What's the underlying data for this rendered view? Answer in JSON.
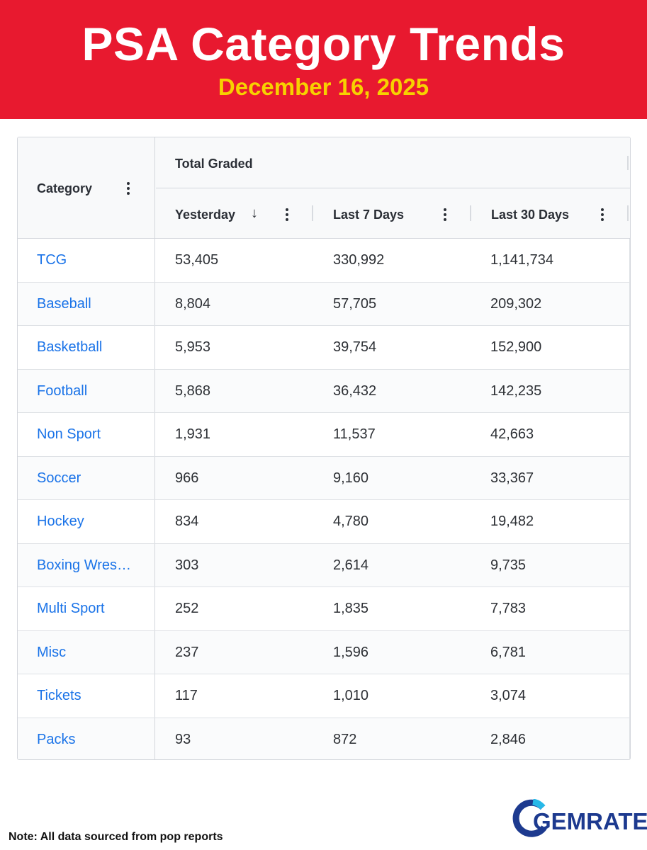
{
  "header": {
    "title": "PSA Category Trends",
    "date": "December 16, 2025"
  },
  "table": {
    "category_header": "Category",
    "group_header": "Total Graded",
    "columns": [
      "Yesterday",
      "Last 7 Days",
      "Last 30 Days"
    ],
    "sort": {
      "column": "Yesterday",
      "direction": "descending",
      "icon": "arrow-down-icon"
    },
    "rows": [
      {
        "category": "TCG",
        "yesterday": "53,405",
        "last7": "330,992",
        "last30": "1,141,734"
      },
      {
        "category": "Baseball",
        "yesterday": "8,804",
        "last7": "57,705",
        "last30": "209,302"
      },
      {
        "category": "Basketball",
        "yesterday": "5,953",
        "last7": "39,754",
        "last30": "152,900"
      },
      {
        "category": "Football",
        "yesterday": "5,868",
        "last7": "36,432",
        "last30": "142,235"
      },
      {
        "category": "Non Sport",
        "yesterday": "1,931",
        "last7": "11,537",
        "last30": "42,663"
      },
      {
        "category": "Soccer",
        "yesterday": "966",
        "last7": "9,160",
        "last30": "33,367"
      },
      {
        "category": "Hockey",
        "yesterday": "834",
        "last7": "4,780",
        "last30": "19,482"
      },
      {
        "category": "Boxing Wres…",
        "yesterday": "303",
        "last7": "2,614",
        "last30": "9,735"
      },
      {
        "category": "Multi Sport",
        "yesterday": "252",
        "last7": "1,835",
        "last30": "7,783"
      },
      {
        "category": "Misc",
        "yesterday": "237",
        "last7": "1,596",
        "last30": "6,781"
      },
      {
        "category": "Tickets",
        "yesterday": "117",
        "last7": "1,010",
        "last30": "3,074"
      },
      {
        "category": "Packs",
        "yesterday": "93",
        "last7": "872",
        "last30": "2,846"
      }
    ]
  },
  "footer": {
    "note": "Note: All data sourced from pop reports",
    "logo_text": "GEMRATE"
  },
  "colors": {
    "banner": "#e8192f",
    "title": "#ffffff",
    "date": "#f7d100",
    "link": "#1a73e8",
    "logo": "#1d3a8f"
  }
}
